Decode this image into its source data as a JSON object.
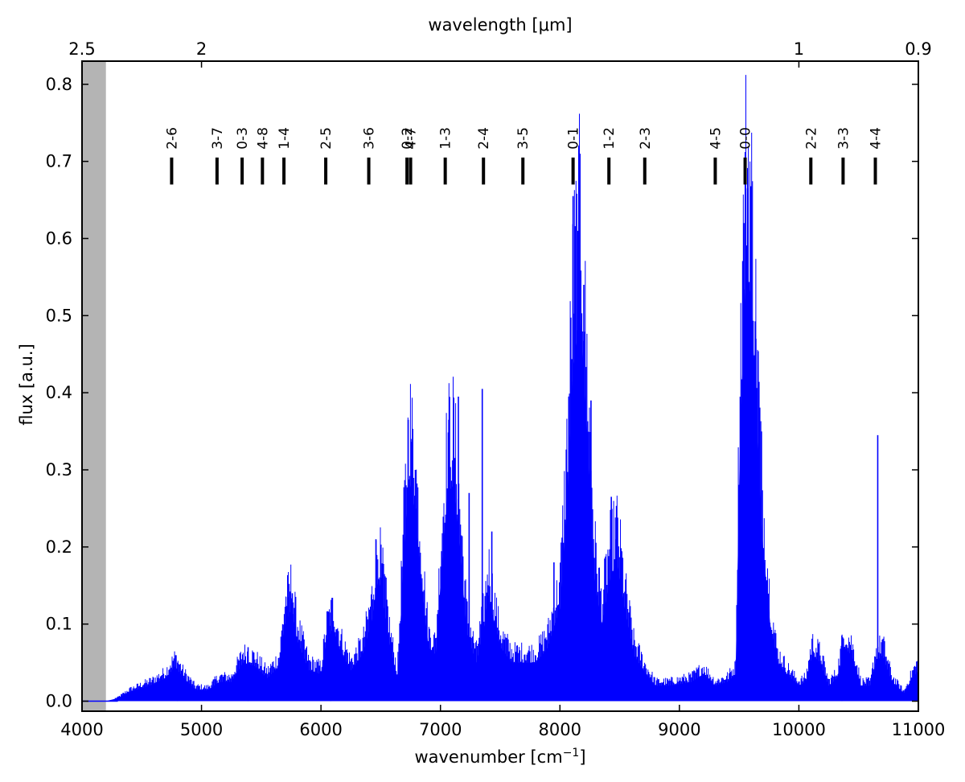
{
  "chart_data": {
    "type": "area",
    "xlabel": "wavenumber [cm",
    "xlabel_sup": "−1",
    "xlabel_end": "]",
    "ylabel": "flux [a.u.]",
    "top_xlabel": "wavelength [μm]",
    "xlim": [
      4000,
      11000
    ],
    "ylim": [
      -0.013,
      0.83
    ],
    "x_ticks": [
      4000,
      5000,
      6000,
      7000,
      8000,
      9000,
      10000,
      11000
    ],
    "x_tick_labels": [
      "4000",
      "5000",
      "6000",
      "7000",
      "8000",
      "9000",
      "10000",
      "11000"
    ],
    "y_ticks": [
      0.0,
      0.1,
      0.2,
      0.3,
      0.4,
      0.5,
      0.6,
      0.7,
      0.8
    ],
    "y_tick_labels": [
      "0.0",
      "0.1",
      "0.2",
      "0.3",
      "0.4",
      "0.5",
      "0.6",
      "0.7",
      "0.8"
    ],
    "top_ticks": [
      {
        "wavenumber": 4000,
        "label": "2.5"
      },
      {
        "wavenumber": 5000,
        "label": "2"
      },
      {
        "wavenumber": 10000,
        "label": "1"
      },
      {
        "wavenumber": 11000,
        "label": "0.9"
      }
    ],
    "shaded_region": [
      4000,
      4200
    ],
    "grid": false,
    "series_color": "#0000ff",
    "shade_color": "#b4b4b4",
    "band_marker_y": [
      0.67,
      0.705
    ],
    "bands": [
      {
        "label": "2-6",
        "x": 4750
      },
      {
        "label": "3-7",
        "x": 5130
      },
      {
        "label": "0-3",
        "x": 5340
      },
      {
        "label": "4-8",
        "x": 5510
      },
      {
        "label": "1-4",
        "x": 5690
      },
      {
        "label": "2-5",
        "x": 6040
      },
      {
        "label": "3-6",
        "x": 6400
      },
      {
        "label": "0-2",
        "x": 6720
      },
      {
        "label": "4-7",
        "x": 6750
      },
      {
        "label": "1-3",
        "x": 7040
      },
      {
        "label": "2-4",
        "x": 7360
      },
      {
        "label": "3-5",
        "x": 7690
      },
      {
        "label": "0-1",
        "x": 8110
      },
      {
        "label": "1-2",
        "x": 8410
      },
      {
        "label": "2-3",
        "x": 8710
      },
      {
        "label": "4-5",
        "x": 9300
      },
      {
        "label": "0-0",
        "x": 9550
      },
      {
        "label": "2-2",
        "x": 10100
      },
      {
        "label": "3-3",
        "x": 10370
      },
      {
        "label": "4-4",
        "x": 10640
      }
    ],
    "envelope": [
      [
        4000,
        0.0
      ],
      [
        4200,
        0.0
      ],
      [
        4300,
        0.004
      ],
      [
        4400,
        0.012
      ],
      [
        4500,
        0.017
      ],
      [
        4600,
        0.022
      ],
      [
        4700,
        0.03
      ],
      [
        4780,
        0.045
      ],
      [
        4850,
        0.03
      ],
      [
        4950,
        0.015
      ],
      [
        5050,
        0.014
      ],
      [
        5150,
        0.025
      ],
      [
        5250,
        0.025
      ],
      [
        5350,
        0.05
      ],
      [
        5450,
        0.045
      ],
      [
        5550,
        0.03
      ],
      [
        5650,
        0.045
      ],
      [
        5700,
        0.1
      ],
      [
        5750,
        0.12
      ],
      [
        5800,
        0.08
      ],
      [
        5900,
        0.04
      ],
      [
        6000,
        0.035
      ],
      [
        6050,
        0.08
      ],
      [
        6100,
        0.095
      ],
      [
        6150,
        0.07
      ],
      [
        6250,
        0.04
      ],
      [
        6350,
        0.06
      ],
      [
        6420,
        0.1
      ],
      [
        6480,
        0.16
      ],
      [
        6530,
        0.12
      ],
      [
        6580,
        0.07
      ],
      [
        6640,
        0.03
      ],
      [
        6700,
        0.2
      ],
      [
        6740,
        0.29
      ],
      [
        6790,
        0.24
      ],
      [
        6850,
        0.14
      ],
      [
        6900,
        0.07
      ],
      [
        6960,
        0.06
      ],
      [
        7000,
        0.15
      ],
      [
        7060,
        0.27
      ],
      [
        7110,
        0.28
      ],
      [
        7160,
        0.2
      ],
      [
        7220,
        0.09
      ],
      [
        7300,
        0.05
      ],
      [
        7370,
        0.1
      ],
      [
        7400,
        0.14
      ],
      [
        7440,
        0.11
      ],
      [
        7500,
        0.07
      ],
      [
        7600,
        0.05
      ],
      [
        7700,
        0.05
      ],
      [
        7800,
        0.05
      ],
      [
        7900,
        0.07
      ],
      [
        8000,
        0.12
      ],
      [
        8060,
        0.26
      ],
      [
        8110,
        0.43
      ],
      [
        8170,
        0.5
      ],
      [
        8220,
        0.36
      ],
      [
        8290,
        0.16
      ],
      [
        8350,
        0.1
      ],
      [
        8420,
        0.16
      ],
      [
        8480,
        0.18
      ],
      [
        8540,
        0.12
      ],
      [
        8620,
        0.06
      ],
      [
        8720,
        0.035
      ],
      [
        8800,
        0.02
      ],
      [
        8900,
        0.02
      ],
      [
        9000,
        0.022
      ],
      [
        9100,
        0.025
      ],
      [
        9200,
        0.035
      ],
      [
        9300,
        0.02
      ],
      [
        9400,
        0.025
      ],
      [
        9470,
        0.035
      ],
      [
        9510,
        0.36
      ],
      [
        9560,
        0.56
      ],
      [
        9600,
        0.52
      ],
      [
        9650,
        0.36
      ],
      [
        9700,
        0.2
      ],
      [
        9760,
        0.1
      ],
      [
        9820,
        0.05
      ],
      [
        9900,
        0.035
      ],
      [
        10000,
        0.02
      ],
      [
        10060,
        0.025
      ],
      [
        10110,
        0.06
      ],
      [
        10180,
        0.05
      ],
      [
        10250,
        0.02
      ],
      [
        10320,
        0.03
      ],
      [
        10380,
        0.07
      ],
      [
        10440,
        0.06
      ],
      [
        10520,
        0.02
      ],
      [
        10600,
        0.02
      ],
      [
        10640,
        0.05
      ],
      [
        10700,
        0.06
      ],
      [
        10780,
        0.025
      ],
      [
        10880,
        0.01
      ],
      [
        10950,
        0.03
      ],
      [
        11000,
        0.04
      ]
    ],
    "spikes": [
      [
        4800,
        0.05
      ],
      [
        5390,
        0.07
      ],
      [
        5720,
        0.135
      ],
      [
        5760,
        0.14
      ],
      [
        6080,
        0.115
      ],
      [
        6460,
        0.21
      ],
      [
        6510,
        0.16
      ],
      [
        6730,
        0.365
      ],
      [
        6760,
        0.34
      ],
      [
        6790,
        0.3
      ],
      [
        7070,
        0.365
      ],
      [
        7150,
        0.395
      ],
      [
        7240,
        0.27
      ],
      [
        7350,
        0.405
      ],
      [
        7430,
        0.22
      ],
      [
        7950,
        0.18
      ],
      [
        8110,
        0.655
      ],
      [
        8150,
        0.61
      ],
      [
        8200,
        0.54
      ],
      [
        8260,
        0.39
      ],
      [
        8430,
        0.265
      ],
      [
        8470,
        0.21
      ],
      [
        9540,
        0.62
      ],
      [
        9570,
        0.665
      ],
      [
        9600,
        0.555
      ],
      [
        9640,
        0.47
      ],
      [
        10360,
        0.085
      ],
      [
        10660,
        0.345
      ]
    ]
  }
}
